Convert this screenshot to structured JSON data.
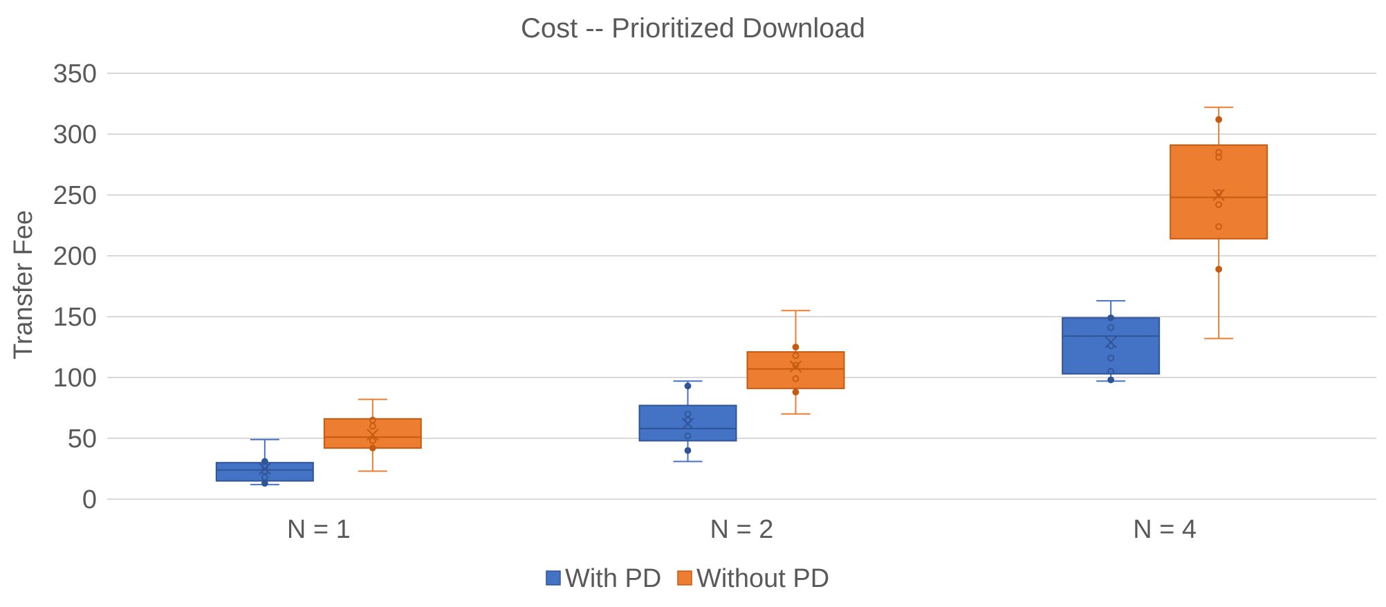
{
  "chart_data": {
    "type": "box",
    "title": "Cost -- Prioritized Download",
    "ylabel": "Transfer Fee",
    "xlabel": "",
    "ylim": [
      0,
      350
    ],
    "yticks": [
      0,
      50,
      100,
      150,
      200,
      250,
      300,
      350
    ],
    "grid": true,
    "legend_position": "bottom",
    "categories": [
      "N = 1",
      "N = 2",
      "N = 4"
    ],
    "series": [
      {
        "name": "With PD",
        "color": "#4472C4",
        "stroke": "#2F5597",
        "boxes": [
          {
            "min": 12,
            "q1": 15,
            "median": 24,
            "q3": 30,
            "max": 49,
            "mean": 25,
            "points": [
              13,
              18,
              23,
              27,
              31
            ]
          },
          {
            "min": 31,
            "q1": 48,
            "median": 58,
            "q3": 77,
            "max": 97,
            "mean": 62,
            "points": [
              40,
              52,
              65,
              70,
              93
            ]
          },
          {
            "min": 97,
            "q1": 103,
            "median": 134,
            "q3": 149,
            "max": 163,
            "mean": 129,
            "points": [
              98,
              105,
              116,
              126,
              141,
              149
            ]
          }
        ]
      },
      {
        "name": "Without PD",
        "color": "#ED7D31",
        "stroke": "#C55A11",
        "boxes": [
          {
            "min": 23,
            "q1": 42,
            "median": 51,
            "q3": 66,
            "max": 82,
            "mean": 53,
            "points": [
              42,
              48,
              60,
              65
            ]
          },
          {
            "min": 70,
            "q1": 91,
            "median": 107,
            "q3": 121,
            "max": 155,
            "mean": 109,
            "points": [
              88,
              99,
              110,
              118,
              125
            ]
          },
          {
            "min": 132,
            "q1": 214,
            "median": 248,
            "q3": 291,
            "max": 322,
            "mean": 250,
            "points": [
              189,
              224,
              242,
              252,
              281,
              285,
              312
            ]
          }
        ]
      }
    ]
  }
}
